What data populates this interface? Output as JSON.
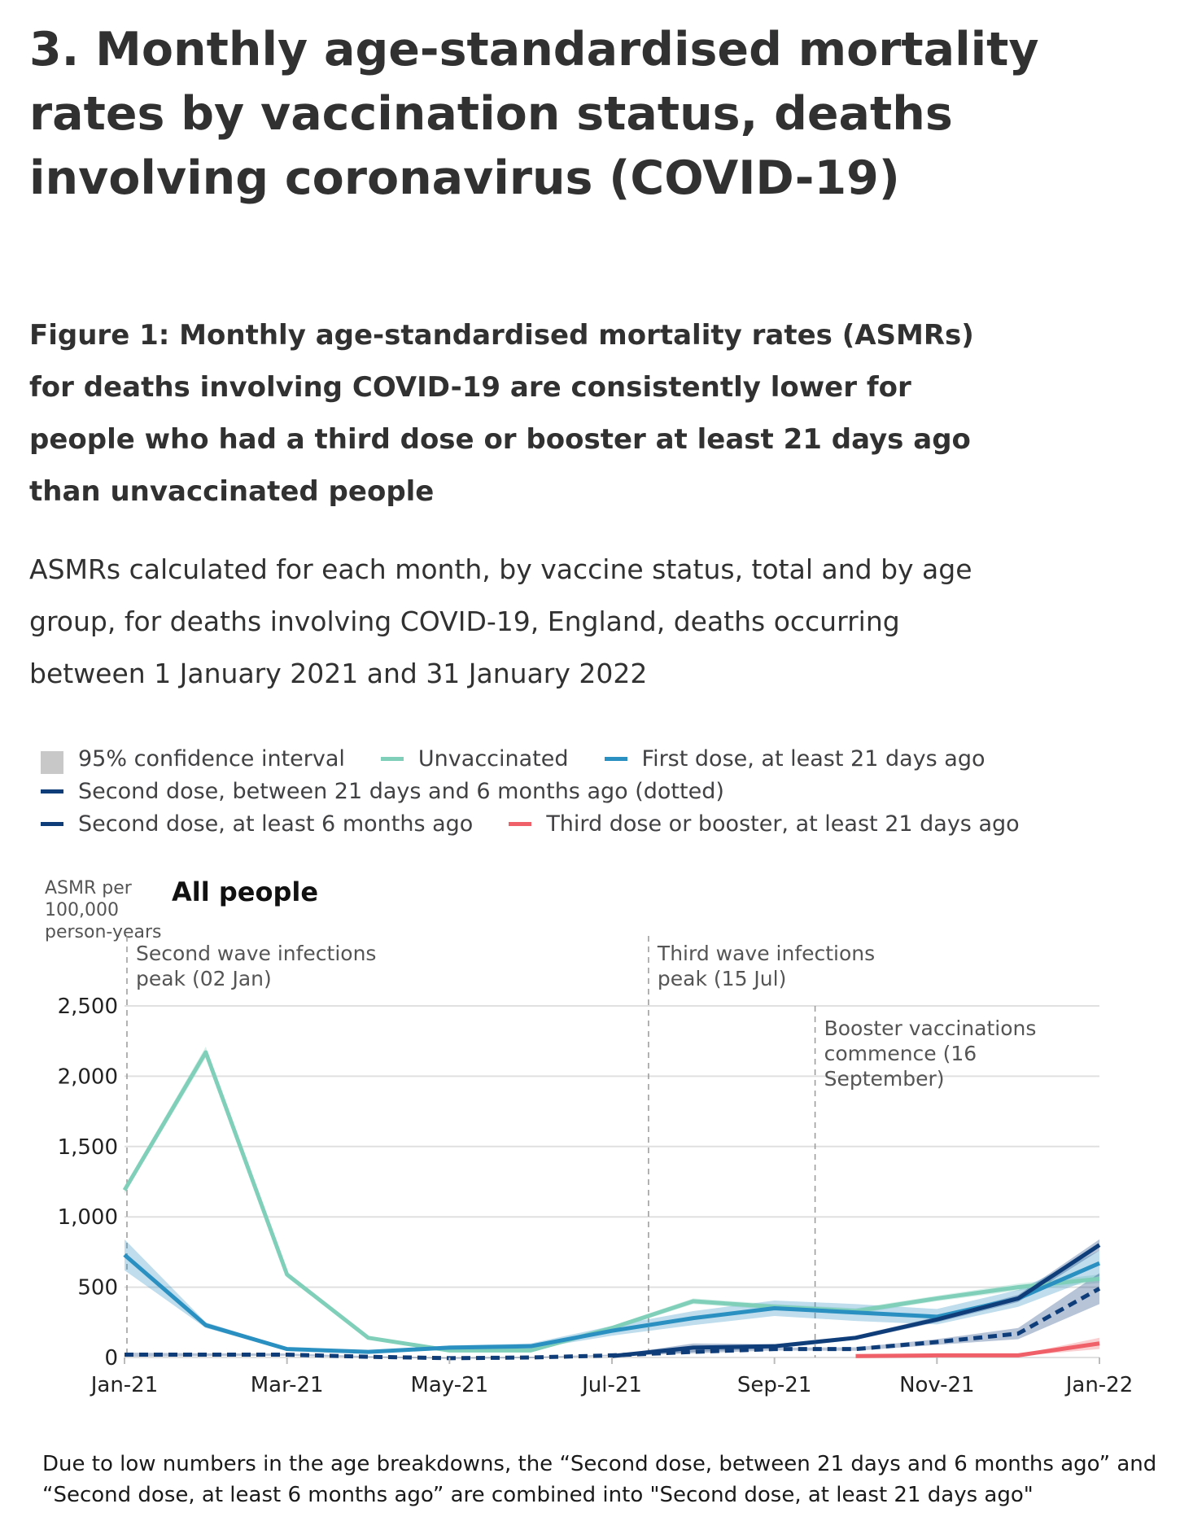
{
  "heading": "3.  Monthly age-standardised mortality rates by vaccination status, deaths involving coronavirus (COVID-19)",
  "figure_title": "Figure 1: Monthly age-standardised mortality rates (ASMRs) for deaths involving COVID-19 are consistently lower for people who had a third dose or booster at least 21 days ago than unvaccinated people",
  "subtitle": "ASMRs calculated for each month, by vaccine status, total and by age group, for deaths involving COVID-19, England, deaths occurring between 1 January 2021 and 31 January 2022",
  "legend": {
    "ci": "95% confidence interval",
    "unvax": "Unvaccinated",
    "first": "First dose, at least 21 days ago",
    "second_dotted": "Second dose, between 21 days and 6 months ago (dotted)",
    "second_6m": "Second dose, at least 6 months ago",
    "third": "Third dose or booster, at least 21 days ago"
  },
  "colors": {
    "unvax": "#80cfb9",
    "first": "#2a8fc1",
    "second": "#0f3d7a",
    "third": "#ef6068",
    "ci": "#c8c8c8",
    "grid": "#e0e0e0"
  },
  "footnote": "Due to low numbers in the age breakdowns, the “Second dose, between 21 days and 6 months ago” and “Second dose, at least 6 months ago” are combined into \"Second dose, at least 21 days ago\"",
  "chart_data": {
    "type": "line",
    "title": "All people",
    "ylabel": "ASMR per 100,000 person-years",
    "ylim": [
      0,
      2500
    ],
    "yticks": [
      0,
      500,
      1000,
      1500,
      2000,
      2500
    ],
    "ytick_labels": [
      "0",
      "500",
      "1,000",
      "1,500",
      "2,000",
      "2,500"
    ],
    "x": [
      "Jan-21",
      "Feb-21",
      "Mar-21",
      "Apr-21",
      "May-21",
      "Jun-21",
      "Jul-21",
      "Aug-21",
      "Sep-21",
      "Oct-21",
      "Nov-21",
      "Dec-21",
      "Jan-22"
    ],
    "xtick_labels": [
      "Jan-21",
      "Mar-21",
      "May-21",
      "Jul-21",
      "Sep-21",
      "Nov-21",
      "Jan-22"
    ],
    "series": [
      {
        "key": "unvax",
        "name": "Unvaccinated",
        "values": [
          1190,
          2170,
          590,
          140,
          50,
          50,
          210,
          400,
          360,
          330,
          420,
          500,
          560
        ],
        "ci": [
          25,
          40,
          20,
          12,
          10,
          10,
          15,
          20,
          20,
          20,
          20,
          25,
          30
        ]
      },
      {
        "key": "first",
        "name": "First dose, at least 21 days ago",
        "values": [
          730,
          230,
          60,
          40,
          70,
          80,
          190,
          280,
          350,
          320,
          290,
          420,
          670
        ],
        "ci": [
          110,
          20,
          10,
          8,
          15,
          20,
          35,
          50,
          55,
          60,
          55,
          60,
          90
        ]
      },
      {
        "key": "second",
        "name": "Second dose, between 21 days and 6 months ago",
        "dashed": true,
        "values": [
          20,
          20,
          20,
          5,
          -5,
          0,
          15,
          40,
          60,
          60,
          110,
          170,
          490
        ],
        "ci": [
          15,
          10,
          8,
          5,
          5,
          5,
          5,
          10,
          10,
          12,
          20,
          40,
          110
        ]
      },
      {
        "key": "second",
        "name": "Second dose, at least 6 months ago",
        "values": [
          null,
          null,
          null,
          null,
          null,
          null,
          10,
          70,
          80,
          140,
          270,
          420,
          800
        ],
        "ci": [
          null,
          null,
          null,
          null,
          null,
          null,
          5,
          30,
          15,
          15,
          20,
          25,
          40
        ]
      },
      {
        "key": "third",
        "name": "Third dose or booster, at least 21 days ago",
        "values": [
          null,
          null,
          null,
          null,
          null,
          null,
          null,
          null,
          null,
          10,
          15,
          15,
          100
        ],
        "ci": [
          null,
          null,
          null,
          null,
          null,
          null,
          null,
          null,
          null,
          5,
          5,
          5,
          40
        ]
      }
    ],
    "annotations": [
      {
        "month": 0.03,
        "text": [
          "Second wave infections",
          "peak (02 Jan)"
        ]
      },
      {
        "month": 6.45,
        "text": [
          "Third wave infections",
          "peak (15 Jul)"
        ]
      },
      {
        "month": 8.5,
        "text": [
          "Booster vaccinations",
          "commence (16",
          "September)"
        ]
      }
    ]
  }
}
